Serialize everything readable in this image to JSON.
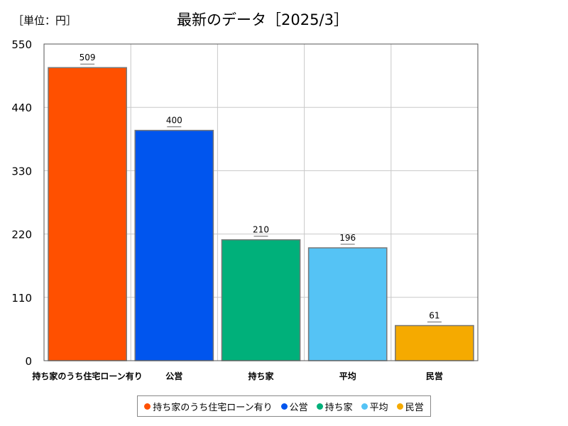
{
  "unit_label": "［単位：円］",
  "chart_data": {
    "type": "bar",
    "title": "最新のデータ［2025/3］",
    "categories": [
      "持ち家のうち住宅ローン有り",
      "公営",
      "持ち家",
      "平均",
      "民営"
    ],
    "values": [
      509,
      400,
      210,
      196,
      61
    ],
    "colors": [
      "#ff5000",
      "#0055ee",
      "#00b07a",
      "#55c3f5",
      "#f5aa00"
    ],
    "ylim": [
      0,
      550
    ],
    "yticks": [
      0,
      110,
      220,
      330,
      440,
      550
    ],
    "grid": true,
    "legend": "bottom",
    "xlabel": "",
    "ylabel": ""
  }
}
